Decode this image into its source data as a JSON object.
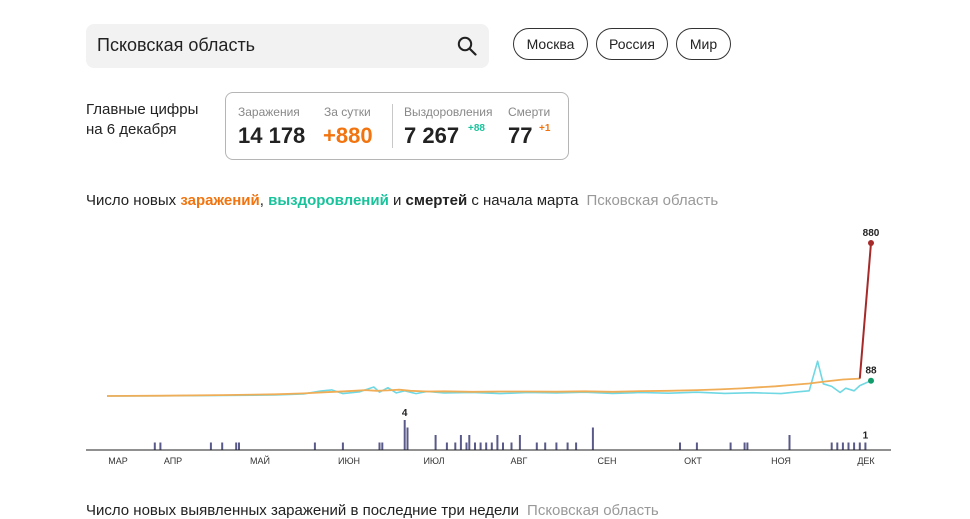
{
  "search": {
    "value": "Псковская область"
  },
  "regions": {
    "moscow": "Москва",
    "russia": "Россия",
    "world": "Мир"
  },
  "summary": {
    "label_line1": "Главные цифры",
    "label_line2": "на 6 декабря",
    "infections_label": "Заражения",
    "infections_value": "14 178",
    "per_day_label": "За сутки",
    "per_day_value": "+880",
    "recoveries_label": "Выздоровления",
    "recoveries_value": "7 267",
    "recoveries_inc": "+88",
    "deaths_label": "Смерти",
    "deaths_value": "77",
    "deaths_inc": "+1"
  },
  "chart_title": {
    "prefix": "Число новых ",
    "infections": "заражений",
    "sep1": ", ",
    "recoveries": "выздоровлений",
    "sep2": " и ",
    "deaths": "смертей",
    "suffix": " с начала марта",
    "region": "Псковская область"
  },
  "second_title": {
    "text": "Число новых выявленных заражений в последние три недели",
    "region": "Псковская область"
  },
  "colors": {
    "infections": "#f2740f",
    "infections_line": "#f0ad57",
    "recoveries": "#18c39b",
    "recoveries_line": "#6fd8e3",
    "deaths_bar": "#5a5a8a",
    "spike": "#a62a2a"
  },
  "chart_data": {
    "type": "line",
    "x_axis": {
      "labels": [
        "МАР",
        "АПР",
        "МАЙ",
        "ИЮН",
        "ИЮЛ",
        "АВГ",
        "СЕН",
        "ОКТ",
        "НОЯ",
        "ДЕК"
      ]
    },
    "series": [
      {
        "name": "заражения",
        "points": [
          [
            0,
            0
          ],
          [
            20,
            2
          ],
          [
            40,
            5
          ],
          [
            60,
            10
          ],
          [
            70,
            15
          ],
          [
            78,
            22
          ],
          [
            82,
            25
          ],
          [
            88,
            30
          ],
          [
            92,
            34
          ],
          [
            96,
            30
          ],
          [
            100,
            32
          ],
          [
            104,
            36
          ],
          [
            108,
            30
          ],
          [
            114,
            26
          ],
          [
            120,
            27
          ],
          [
            130,
            24
          ],
          [
            140,
            26
          ],
          [
            150,
            26
          ],
          [
            160,
            25
          ],
          [
            170,
            27
          ],
          [
            180,
            24
          ],
          [
            190,
            28
          ],
          [
            200,
            30
          ],
          [
            210,
            34
          ],
          [
            218,
            38
          ],
          [
            226,
            44
          ],
          [
            232,
            50
          ],
          [
            238,
            56
          ],
          [
            244,
            64
          ],
          [
            250,
            72
          ],
          [
            256,
            84
          ],
          [
            262,
            95
          ],
          [
            268,
            100
          ],
          [
            272,
            880
          ]
        ]
      },
      {
        "name": "выздоровления",
        "points": [
          [
            0,
            0
          ],
          [
            30,
            2
          ],
          [
            60,
            6
          ],
          [
            70,
            12
          ],
          [
            76,
            28
          ],
          [
            80,
            35
          ],
          [
            84,
            14
          ],
          [
            90,
            24
          ],
          [
            95,
            52
          ],
          [
            97,
            22
          ],
          [
            100,
            48
          ],
          [
            103,
            18
          ],
          [
            106,
            30
          ],
          [
            110,
            14
          ],
          [
            114,
            26
          ],
          [
            120,
            18
          ],
          [
            130,
            20
          ],
          [
            140,
            14
          ],
          [
            150,
            20
          ],
          [
            160,
            18
          ],
          [
            170,
            22
          ],
          [
            180,
            15
          ],
          [
            190,
            20
          ],
          [
            200,
            16
          ],
          [
            210,
            22
          ],
          [
            220,
            15
          ],
          [
            230,
            19
          ],
          [
            240,
            14
          ],
          [
            246,
            24
          ],
          [
            250,
            30
          ],
          [
            253,
            200
          ],
          [
            255,
            70
          ],
          [
            258,
            55
          ],
          [
            261,
            20
          ],
          [
            263,
            45
          ],
          [
            266,
            30
          ],
          [
            268,
            60
          ],
          [
            272,
            88
          ]
        ]
      },
      {
        "name": "смерти",
        "bars": [
          [
            17,
            1
          ],
          [
            19,
            1
          ],
          [
            37,
            1
          ],
          [
            41,
            1
          ],
          [
            46,
            1
          ],
          [
            47,
            1
          ],
          [
            74,
            1
          ],
          [
            84,
            1
          ],
          [
            97,
            1
          ],
          [
            98,
            1
          ],
          [
            106,
            4
          ],
          [
            107,
            3
          ],
          [
            117,
            2
          ],
          [
            121,
            1
          ],
          [
            124,
            1
          ],
          [
            126,
            2
          ],
          [
            128,
            1
          ],
          [
            129,
            2
          ],
          [
            131,
            1
          ],
          [
            133,
            1
          ],
          [
            135,
            1
          ],
          [
            137,
            1
          ],
          [
            139,
            2
          ],
          [
            141,
            1
          ],
          [
            144,
            1
          ],
          [
            147,
            2
          ],
          [
            153,
            1
          ],
          [
            156,
            1
          ],
          [
            160,
            1
          ],
          [
            164,
            1
          ],
          [
            167,
            1
          ],
          [
            173,
            3
          ],
          [
            204,
            1
          ],
          [
            210,
            1
          ],
          [
            222,
            1
          ],
          [
            227,
            1
          ],
          [
            228,
            1
          ],
          [
            243,
            2
          ],
          [
            258,
            1
          ],
          [
            260,
            1
          ],
          [
            262,
            1
          ],
          [
            264,
            1
          ],
          [
            266,
            1
          ],
          [
            268,
            1
          ],
          [
            270,
            1
          ]
        ]
      }
    ],
    "annotations": {
      "infections_last": "880",
      "recoveries_last": "88",
      "deaths_max": "4",
      "deaths_last": "1"
    }
  }
}
